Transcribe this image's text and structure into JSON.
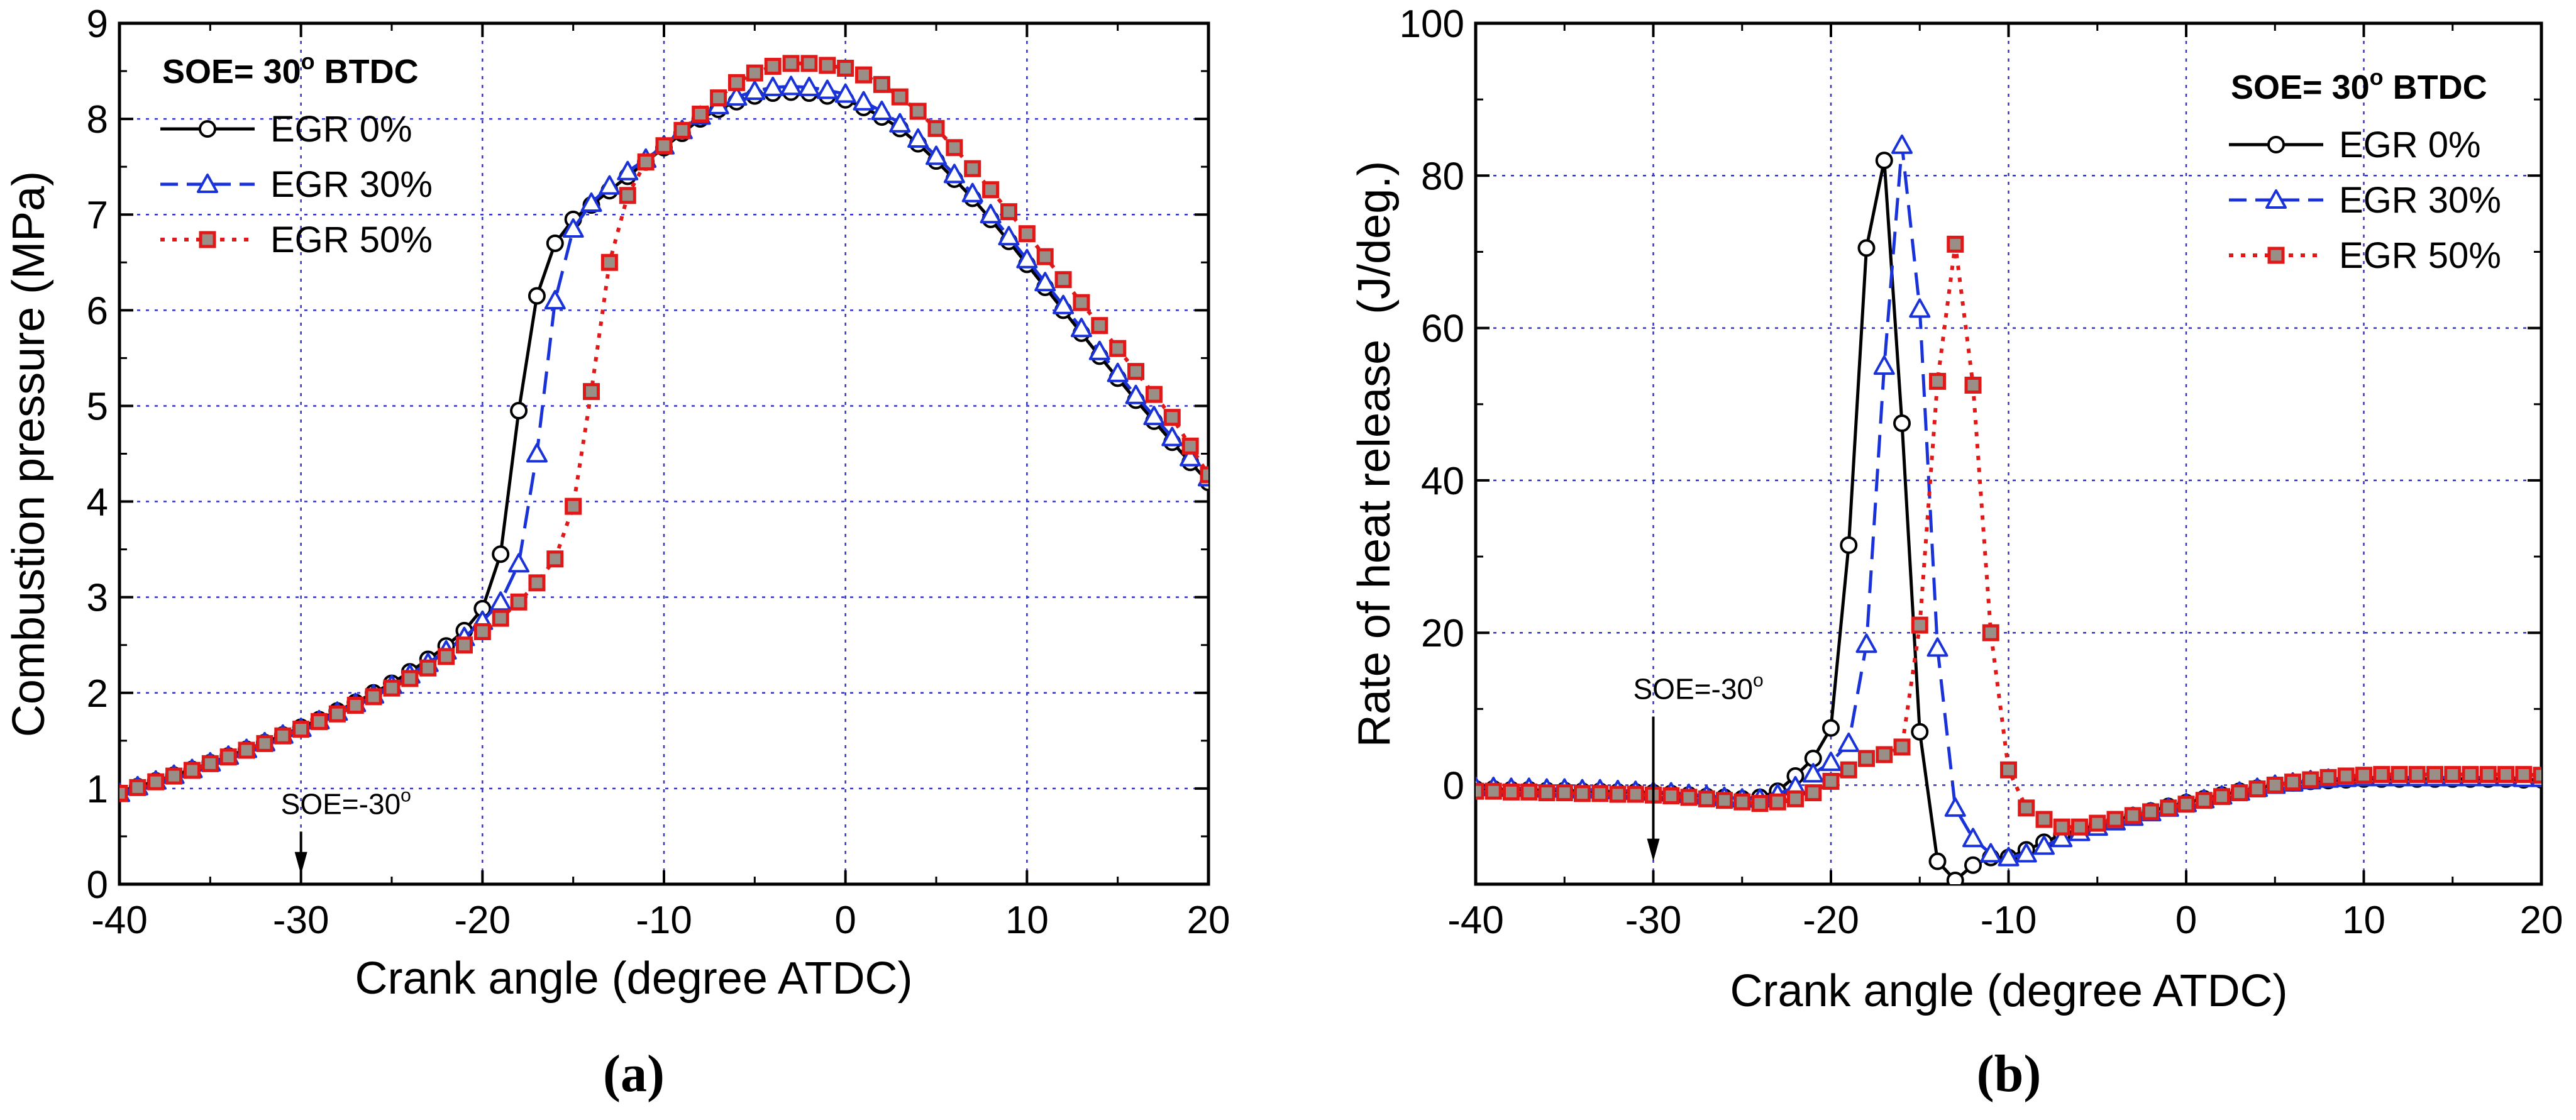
{
  "colors": {
    "egr0": "#000000",
    "egr30": "#1a33d9",
    "egr50": "#e01818",
    "egr50_fill": "#9a8f87",
    "grid": "#3333cc"
  },
  "chart_data": [
    {
      "type": "line",
      "panel_label": "a",
      "title": "",
      "xlabel": "Crank angle (degree ATDC)",
      "ylabel": "Combustion pressure (MPa)",
      "xlim": [
        -40,
        20
      ],
      "ylim": [
        0,
        9
      ],
      "xticks": [
        -40,
        -30,
        -20,
        -10,
        0,
        10,
        20
      ],
      "yticks": [
        0,
        1,
        2,
        3,
        4,
        5,
        6,
        7,
        8,
        9
      ],
      "grid": true,
      "legend_title": "SOE= 30° BTDC",
      "legend_title_parts": [
        "SOE= 30",
        "o",
        " BTDC"
      ],
      "legend_position": "top-left",
      "annotation": {
        "text": "SOE=-30",
        "sup": "o",
        "x": -30,
        "y_arrow_from": 0.55,
        "y_arrow_to": 0.1
      },
      "series": [
        {
          "name": "EGR 0%",
          "marker": "circle",
          "line": "solid",
          "x": [
            -40,
            -39,
            -38,
            -37,
            -36,
            -35,
            -34,
            -33,
            -32,
            -31,
            -30,
            -29,
            -28,
            -27,
            -26,
            -25,
            -24,
            -23,
            -22,
            -21,
            -20,
            -19,
            -18,
            -17,
            -16,
            -15,
            -14,
            -13,
            -12,
            -11,
            -10,
            -9,
            -8,
            -7,
            -6,
            -5,
            -4,
            -3,
            -2,
            -1,
            0,
            1,
            2,
            3,
            4,
            5,
            6,
            7,
            8,
            9,
            10,
            11,
            12,
            13,
            14,
            15,
            16,
            17,
            18,
            19,
            20
          ],
          "y": [
            0.95,
            1.02,
            1.08,
            1.14,
            1.2,
            1.27,
            1.34,
            1.41,
            1.48,
            1.56,
            1.64,
            1.72,
            1.81,
            1.9,
            2.0,
            2.1,
            2.22,
            2.35,
            2.49,
            2.65,
            2.88,
            3.45,
            4.95,
            6.15,
            6.7,
            6.95,
            7.1,
            7.25,
            7.4,
            7.55,
            7.7,
            7.85,
            8.0,
            8.1,
            8.18,
            8.24,
            8.27,
            8.28,
            8.27,
            8.24,
            8.2,
            8.12,
            8.02,
            7.9,
            7.74,
            7.56,
            7.37,
            7.17,
            6.95,
            6.72,
            6.48,
            6.24,
            6.0,
            5.76,
            5.52,
            5.29,
            5.06,
            4.84,
            4.62,
            4.41,
            4.2
          ]
        },
        {
          "name": "EGR 30%",
          "marker": "triangle",
          "line": "dash",
          "x": [
            -40,
            -39,
            -38,
            -37,
            -36,
            -35,
            -34,
            -33,
            -32,
            -31,
            -30,
            -29,
            -28,
            -27,
            -26,
            -25,
            -24,
            -23,
            -22,
            -21,
            -20,
            -19,
            -18,
            -17,
            -16,
            -15,
            -14,
            -13,
            -12,
            -11,
            -10,
            -9,
            -8,
            -7,
            -6,
            -5,
            -4,
            -3,
            -2,
            -1,
            0,
            1,
            2,
            3,
            4,
            5,
            6,
            7,
            8,
            9,
            10,
            11,
            12,
            13,
            14,
            15,
            16,
            17,
            18,
            19,
            20
          ],
          "y": [
            0.95,
            1.02,
            1.08,
            1.14,
            1.2,
            1.27,
            1.34,
            1.41,
            1.48,
            1.56,
            1.63,
            1.71,
            1.8,
            1.89,
            1.98,
            2.08,
            2.19,
            2.31,
            2.44,
            2.58,
            2.75,
            2.95,
            3.35,
            4.5,
            6.1,
            6.85,
            7.12,
            7.3,
            7.45,
            7.58,
            7.72,
            7.88,
            8.03,
            8.14,
            8.23,
            8.29,
            8.33,
            8.34,
            8.33,
            8.3,
            8.26,
            8.18,
            8.08,
            7.95,
            7.79,
            7.61,
            7.42,
            7.22,
            7.0,
            6.77,
            6.53,
            6.29,
            6.05,
            5.81,
            5.57,
            5.34,
            5.11,
            4.89,
            4.67,
            4.46,
            4.25
          ]
        },
        {
          "name": "EGR 50%",
          "marker": "square",
          "line": "dot",
          "x": [
            -40,
            -39,
            -38,
            -37,
            -36,
            -35,
            -34,
            -33,
            -32,
            -31,
            -30,
            -29,
            -28,
            -27,
            -26,
            -25,
            -24,
            -23,
            -22,
            -21,
            -20,
            -19,
            -18,
            -17,
            -16,
            -15,
            -14,
            -13,
            -12,
            -11,
            -10,
            -9,
            -8,
            -7,
            -6,
            -5,
            -4,
            -3,
            -2,
            -1,
            0,
            1,
            2,
            3,
            4,
            5,
            6,
            7,
            8,
            9,
            10,
            11,
            12,
            13,
            14,
            15,
            16,
            17,
            18,
            19,
            20
          ],
          "y": [
            0.95,
            1.01,
            1.07,
            1.13,
            1.19,
            1.26,
            1.33,
            1.4,
            1.47,
            1.55,
            1.62,
            1.7,
            1.78,
            1.87,
            1.96,
            2.05,
            2.15,
            2.26,
            2.38,
            2.5,
            2.64,
            2.78,
            2.95,
            3.15,
            3.4,
            3.95,
            5.15,
            6.5,
            7.2,
            7.55,
            7.72,
            7.88,
            8.05,
            8.22,
            8.38,
            8.48,
            8.55,
            8.58,
            8.58,
            8.56,
            8.53,
            8.46,
            8.36,
            8.23,
            8.08,
            7.9,
            7.7,
            7.48,
            7.26,
            7.03,
            6.8,
            6.56,
            6.32,
            6.08,
            5.84,
            5.6,
            5.36,
            5.12,
            4.88,
            4.58,
            4.28
          ]
        }
      ]
    },
    {
      "type": "line",
      "panel_label": "b",
      "title": "",
      "xlabel": "Crank angle (degree ATDC)",
      "ylabel": "Rate of heat release  (J/deg.)",
      "xlim": [
        -40,
        20
      ],
      "ylim": [
        -13,
        100
      ],
      "xticks": [
        -40,
        -30,
        -20,
        -10,
        0,
        10,
        20
      ],
      "yticks": [
        0,
        20,
        40,
        60,
        80,
        100
      ],
      "grid": true,
      "legend_title": "SOE= 30° BTDC",
      "legend_title_parts": [
        "SOE= 30",
        "o",
        " BTDC"
      ],
      "legend_position": "top-right",
      "annotation": {
        "text": "SOE=-30",
        "sup": "o",
        "x": -30,
        "y_arrow_from": 9,
        "y_arrow_to": -10
      },
      "series": [
        {
          "name": "EGR 0%",
          "marker": "circle",
          "line": "solid",
          "x": [
            -40,
            -39,
            -38,
            -37,
            -36,
            -35,
            -34,
            -33,
            -32,
            -31,
            -30,
            -29,
            -28,
            -27,
            -26,
            -25,
            -24,
            -23,
            -22,
            -21,
            -20,
            -19,
            -18,
            -17,
            -16,
            -15,
            -14,
            -13,
            -12,
            -11,
            -10,
            -9,
            -8,
            -7,
            -6,
            -5,
            -4,
            -3,
            -2,
            -1,
            0,
            1,
            2,
            3,
            4,
            5,
            6,
            7,
            8,
            9,
            10,
            11,
            12,
            13,
            14,
            15,
            16,
            17,
            18,
            19,
            20
          ],
          "y": [
            -0.5,
            -0.5,
            -0.6,
            -0.6,
            -0.7,
            -0.7,
            -0.8,
            -0.8,
            -0.9,
            -0.9,
            -1.0,
            -1.1,
            -1.3,
            -1.5,
            -1.6,
            -1.8,
            -1.6,
            -0.8,
            1.2,
            3.5,
            7.5,
            31.5,
            70.5,
            82.0,
            47.5,
            7.0,
            -10.0,
            -12.5,
            -10.5,
            -9.5,
            -9.5,
            -8.5,
            -7.5,
            -6.5,
            -5.8,
            -5.2,
            -4.6,
            -4.0,
            -3.4,
            -2.8,
            -2.3,
            -1.8,
            -1.3,
            -0.8,
            -0.4,
            0.0,
            0.3,
            0.5,
            0.6,
            0.7,
            0.8,
            0.8,
            0.8,
            0.8,
            0.8,
            0.8,
            0.8,
            0.8,
            0.8,
            0.7,
            0.7
          ]
        },
        {
          "name": "EGR 30%",
          "marker": "triangle",
          "line": "dash",
          "x": [
            -40,
            -39,
            -38,
            -37,
            -36,
            -35,
            -34,
            -33,
            -32,
            -31,
            -30,
            -29,
            -28,
            -27,
            -26,
            -25,
            -24,
            -23,
            -22,
            -21,
            -20,
            -19,
            -18,
            -17,
            -16,
            -15,
            -14,
            -13,
            -12,
            -11,
            -10,
            -9,
            -8,
            -7,
            -6,
            -5,
            -4,
            -3,
            -2,
            -1,
            0,
            1,
            2,
            3,
            4,
            5,
            6,
            7,
            8,
            9,
            10,
            11,
            12,
            13,
            14,
            15,
            16,
            17,
            18,
            19,
            20
          ],
          "y": [
            -0.3,
            -0.3,
            -0.4,
            -0.4,
            -0.5,
            -0.5,
            -0.6,
            -0.6,
            -0.7,
            -0.8,
            -0.9,
            -1.0,
            -1.2,
            -1.4,
            -1.6,
            -1.8,
            -1.8,
            -1.2,
            -0.2,
            1.5,
            3.0,
            5.5,
            18.5,
            55.0,
            84.0,
            62.5,
            18.0,
            -3.0,
            -7.0,
            -9.0,
            -9.5,
            -9.0,
            -8.0,
            -7.0,
            -6.2,
            -5.5,
            -4.8,
            -4.2,
            -3.6,
            -3.0,
            -2.4,
            -1.9,
            -1.4,
            -0.9,
            -0.4,
            0.0,
            0.3,
            0.6,
            0.8,
            0.9,
            1.0,
            1.0,
            1.0,
            1.0,
            1.0,
            1.0,
            1.0,
            1.0,
            1.0,
            0.9,
            0.9
          ]
        },
        {
          "name": "EGR 50%",
          "marker": "square",
          "line": "dot",
          "x": [
            -40,
            -39,
            -38,
            -37,
            -36,
            -35,
            -34,
            -33,
            -32,
            -31,
            -30,
            -29,
            -28,
            -27,
            -26,
            -25,
            -24,
            -23,
            -22,
            -21,
            -20,
            -19,
            -18,
            -17,
            -16,
            -15,
            -14,
            -13,
            -12,
            -11,
            -10,
            -9,
            -8,
            -7,
            -6,
            -5,
            -4,
            -3,
            -2,
            -1,
            0,
            1,
            2,
            3,
            4,
            5,
            6,
            7,
            8,
            9,
            10,
            11,
            12,
            13,
            14,
            15,
            16,
            17,
            18,
            19,
            20
          ],
          "y": [
            -0.8,
            -0.8,
            -0.9,
            -0.9,
            -1.0,
            -1.0,
            -1.1,
            -1.1,
            -1.2,
            -1.2,
            -1.3,
            -1.4,
            -1.6,
            -1.8,
            -2.0,
            -2.2,
            -2.4,
            -2.2,
            -1.8,
            -1.0,
            0.5,
            2.0,
            3.5,
            4.0,
            5.0,
            21.0,
            53.0,
            71.0,
            52.5,
            20.0,
            2.0,
            -3.0,
            -4.5,
            -5.5,
            -5.5,
            -5.0,
            -4.5,
            -4.0,
            -3.5,
            -3.0,
            -2.5,
            -2.0,
            -1.5,
            -1.0,
            -0.5,
            0.0,
            0.4,
            0.7,
            1.0,
            1.2,
            1.3,
            1.4,
            1.4,
            1.4,
            1.4,
            1.4,
            1.4,
            1.4,
            1.4,
            1.4,
            1.3
          ]
        }
      ]
    }
  ]
}
